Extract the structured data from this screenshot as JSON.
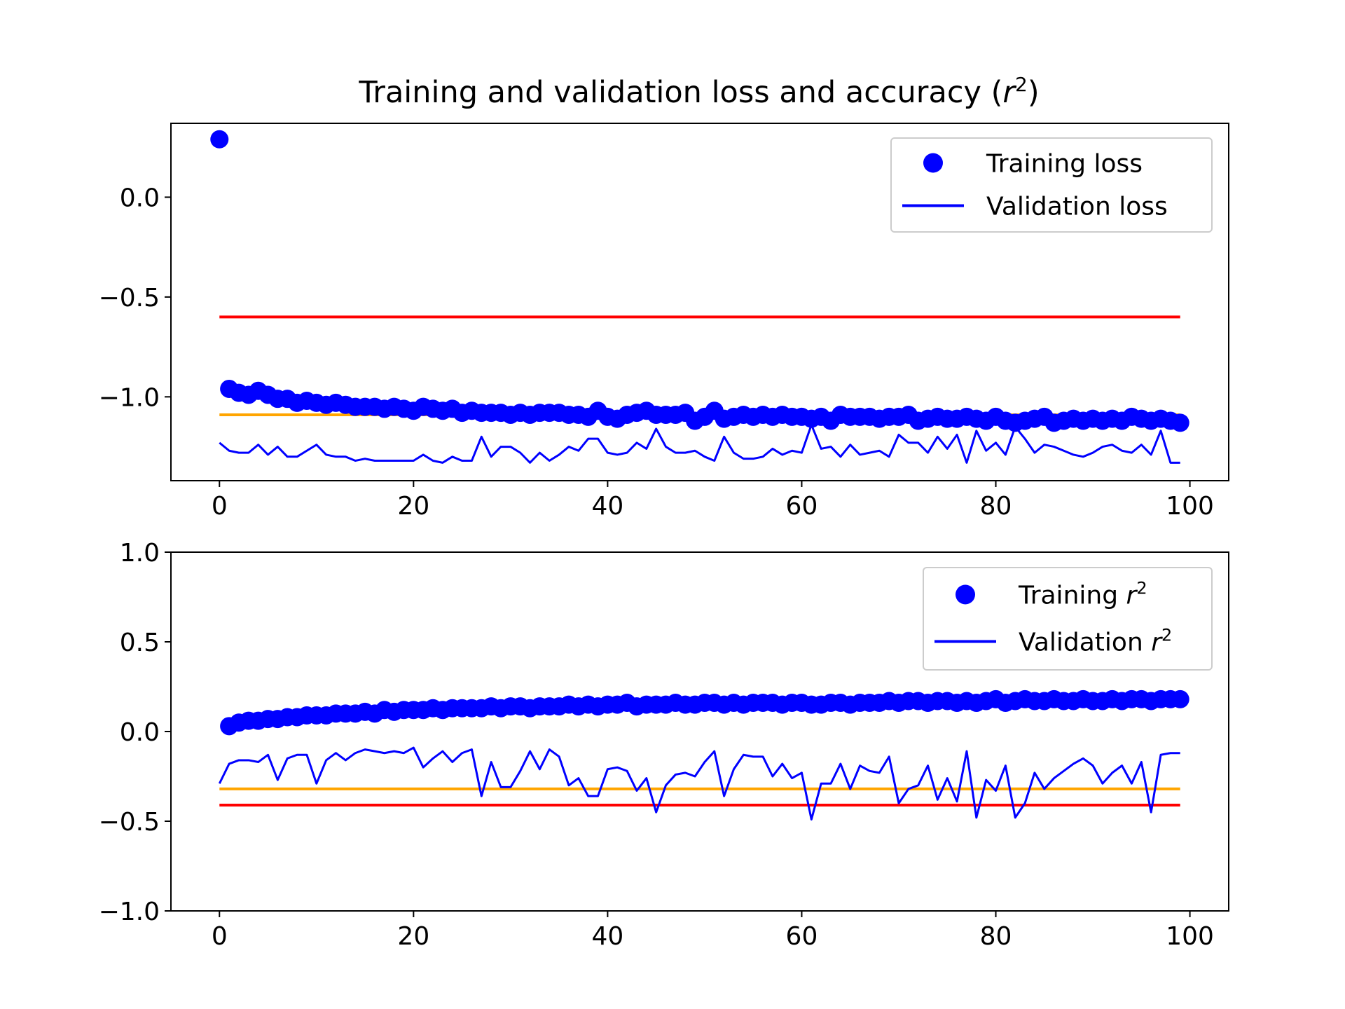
{
  "figure": {
    "title_text": "Training and validation loss and accuracy (",
    "title_var": "r",
    "title_sup": "2",
    "title_close": ")"
  },
  "colors": {
    "training": "#0000ff",
    "validation": "#0000ff",
    "red_reference": "#ff0000",
    "orange_reference": "#ffa500",
    "axes": "#000000",
    "background": "#ffffff"
  },
  "chart_data": [
    {
      "type": "line",
      "title": "Training and validation loss and accuracy (r^2)",
      "xlabel": "",
      "ylabel": "",
      "xlim": [
        -5,
        104
      ],
      "ylim": [
        -1.42,
        0.37
      ],
      "xticks": [
        0,
        20,
        40,
        60,
        80,
        100
      ],
      "xtick_labels": [
        "0",
        "20",
        "40",
        "60",
        "80",
        "100"
      ],
      "yticks": [
        0.0,
        -0.5,
        -1.0
      ],
      "ytick_labels": [
        "0.0",
        "−0.5",
        "−1.0"
      ],
      "grid": false,
      "legend_position": "top-right",
      "legend": [
        {
          "label": "Training loss",
          "var": "",
          "sup": "",
          "marker": "dot"
        },
        {
          "label": "Validation loss",
          "var": "",
          "sup": "",
          "marker": "line"
        }
      ],
      "reference_lines": [
        {
          "y": -0.6,
          "color": "red",
          "x": [
            0,
            99
          ]
        },
        {
          "y": -1.09,
          "color": "orange",
          "x": [
            0,
            99
          ]
        }
      ],
      "series": [
        {
          "name": "Training loss",
          "style": "points",
          "x_start": 0,
          "values": [
            0.29,
            -0.96,
            -0.98,
            -0.99,
            -0.97,
            -0.99,
            -1.01,
            -1.01,
            -1.03,
            -1.02,
            -1.03,
            -1.04,
            -1.03,
            -1.04,
            -1.05,
            -1.05,
            -1.05,
            -1.06,
            -1.05,
            -1.06,
            -1.07,
            -1.05,
            -1.06,
            -1.07,
            -1.06,
            -1.08,
            -1.07,
            -1.08,
            -1.08,
            -1.08,
            -1.09,
            -1.08,
            -1.09,
            -1.08,
            -1.08,
            -1.08,
            -1.09,
            -1.09,
            -1.1,
            -1.07,
            -1.1,
            -1.11,
            -1.09,
            -1.08,
            -1.07,
            -1.09,
            -1.09,
            -1.09,
            -1.08,
            -1.12,
            -1.1,
            -1.07,
            -1.11,
            -1.1,
            -1.09,
            -1.1,
            -1.09,
            -1.1,
            -1.09,
            -1.1,
            -1.1,
            -1.11,
            -1.1,
            -1.12,
            -1.09,
            -1.1,
            -1.1,
            -1.1,
            -1.11,
            -1.1,
            -1.1,
            -1.09,
            -1.12,
            -1.11,
            -1.1,
            -1.11,
            -1.11,
            -1.1,
            -1.11,
            -1.12,
            -1.1,
            -1.12,
            -1.13,
            -1.12,
            -1.11,
            -1.1,
            -1.13,
            -1.12,
            -1.11,
            -1.12,
            -1.11,
            -1.12,
            -1.11,
            -1.12,
            -1.1,
            -1.11,
            -1.12,
            -1.11,
            -1.12,
            -1.13
          ]
        },
        {
          "name": "Validation loss",
          "style": "line",
          "x_start": 0,
          "values": [
            -1.23,
            -1.27,
            -1.28,
            -1.28,
            -1.24,
            -1.29,
            -1.25,
            -1.3,
            -1.3,
            -1.27,
            -1.24,
            -1.29,
            -1.3,
            -1.3,
            -1.32,
            -1.31,
            -1.32,
            -1.32,
            -1.32,
            -1.32,
            -1.32,
            -1.29,
            -1.32,
            -1.33,
            -1.3,
            -1.32,
            -1.32,
            -1.2,
            -1.3,
            -1.25,
            -1.25,
            -1.28,
            -1.33,
            -1.28,
            -1.32,
            -1.29,
            -1.25,
            -1.27,
            -1.21,
            -1.21,
            -1.28,
            -1.29,
            -1.28,
            -1.23,
            -1.26,
            -1.16,
            -1.25,
            -1.28,
            -1.28,
            -1.27,
            -1.3,
            -1.32,
            -1.2,
            -1.28,
            -1.31,
            -1.31,
            -1.3,
            -1.26,
            -1.29,
            -1.27,
            -1.28,
            -1.14,
            -1.26,
            -1.25,
            -1.3,
            -1.24,
            -1.29,
            -1.28,
            -1.27,
            -1.3,
            -1.19,
            -1.23,
            -1.23,
            -1.28,
            -1.2,
            -1.26,
            -1.19,
            -1.33,
            -1.17,
            -1.27,
            -1.23,
            -1.29,
            -1.15,
            -1.21,
            -1.28,
            -1.24,
            -1.25,
            -1.27,
            -1.29,
            -1.3,
            -1.28,
            -1.25,
            -1.24,
            -1.27,
            -1.28,
            -1.24,
            -1.29,
            -1.17,
            -1.33,
            -1.33
          ]
        }
      ]
    },
    {
      "type": "line",
      "title": "",
      "xlabel": "",
      "ylabel": "",
      "xlim": [
        -5,
        104
      ],
      "ylim": [
        -1.0,
        1.0
      ],
      "xticks": [
        0,
        20,
        40,
        60,
        80,
        100
      ],
      "xtick_labels": [
        "0",
        "20",
        "40",
        "60",
        "80",
        "100"
      ],
      "yticks": [
        1.0,
        0.5,
        0.0,
        -0.5,
        -1.0
      ],
      "ytick_labels": [
        "1.0",
        "0.5",
        "0.0",
        "−0.5",
        "−1.0"
      ],
      "grid": false,
      "legend_position": "top-right",
      "legend": [
        {
          "label": "Training ",
          "var": "r",
          "sup": "2",
          "marker": "dot"
        },
        {
          "label": "Validation ",
          "var": "r",
          "sup": "2",
          "marker": "line"
        }
      ],
      "reference_lines": [
        {
          "y": -0.32,
          "color": "orange",
          "x": [
            0,
            99
          ]
        },
        {
          "y": -0.41,
          "color": "red",
          "x": [
            0,
            99
          ]
        }
      ],
      "series": [
        {
          "name": "Training r^2",
          "style": "points",
          "x_start": 1,
          "values": [
            0.03,
            0.05,
            0.06,
            0.06,
            0.07,
            0.07,
            0.08,
            0.08,
            0.09,
            0.09,
            0.09,
            0.1,
            0.1,
            0.1,
            0.11,
            0.1,
            0.12,
            0.11,
            0.12,
            0.12,
            0.12,
            0.13,
            0.12,
            0.13,
            0.13,
            0.13,
            0.13,
            0.14,
            0.13,
            0.14,
            0.14,
            0.13,
            0.14,
            0.14,
            0.14,
            0.15,
            0.14,
            0.15,
            0.14,
            0.15,
            0.15,
            0.16,
            0.14,
            0.15,
            0.15,
            0.15,
            0.16,
            0.15,
            0.15,
            0.16,
            0.16,
            0.15,
            0.16,
            0.15,
            0.16,
            0.16,
            0.16,
            0.15,
            0.16,
            0.16,
            0.15,
            0.15,
            0.16,
            0.16,
            0.15,
            0.16,
            0.16,
            0.16,
            0.17,
            0.16,
            0.17,
            0.17,
            0.16,
            0.17,
            0.17,
            0.16,
            0.17,
            0.16,
            0.17,
            0.18,
            0.16,
            0.17,
            0.18,
            0.17,
            0.17,
            0.18,
            0.17,
            0.17,
            0.18,
            0.17,
            0.17,
            0.18,
            0.17,
            0.18,
            0.18,
            0.17,
            0.18,
            0.18,
            0.18
          ]
        },
        {
          "name": "Validation r^2",
          "style": "line",
          "x_start": 0,
          "values": [
            -0.29,
            -0.18,
            -0.16,
            -0.16,
            -0.17,
            -0.13,
            -0.27,
            -0.15,
            -0.13,
            -0.13,
            -0.29,
            -0.16,
            -0.12,
            -0.16,
            -0.12,
            -0.1,
            -0.11,
            -0.12,
            -0.11,
            -0.12,
            -0.09,
            -0.2,
            -0.15,
            -0.11,
            -0.17,
            -0.12,
            -0.1,
            -0.36,
            -0.17,
            -0.31,
            -0.31,
            -0.22,
            -0.11,
            -0.21,
            -0.1,
            -0.14,
            -0.3,
            -0.26,
            -0.36,
            -0.36,
            -0.21,
            -0.2,
            -0.22,
            -0.33,
            -0.26,
            -0.45,
            -0.3,
            -0.24,
            -0.23,
            -0.25,
            -0.17,
            -0.11,
            -0.36,
            -0.21,
            -0.13,
            -0.14,
            -0.14,
            -0.25,
            -0.18,
            -0.26,
            -0.23,
            -0.49,
            -0.29,
            -0.29,
            -0.18,
            -0.32,
            -0.19,
            -0.22,
            -0.23,
            -0.14,
            -0.4,
            -0.32,
            -0.3,
            -0.19,
            -0.38,
            -0.26,
            -0.39,
            -0.11,
            -0.48,
            -0.27,
            -0.33,
            -0.19,
            -0.48,
            -0.4,
            -0.23,
            -0.32,
            -0.26,
            -0.22,
            -0.18,
            -0.15,
            -0.19,
            -0.29,
            -0.23,
            -0.19,
            -0.29,
            -0.17,
            -0.45,
            -0.13,
            -0.12,
            -0.12
          ]
        }
      ]
    }
  ]
}
